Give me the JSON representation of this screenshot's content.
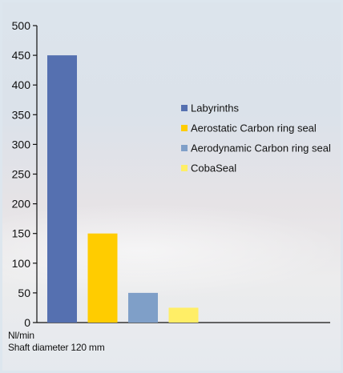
{
  "chart_data": {
    "type": "bar",
    "categories": [
      "Labyrinths",
      "Aerostatic Carbon ring seal",
      "Aerodynamic Carbon ring seal",
      "CobaSeal"
    ],
    "values": [
      450,
      150,
      50,
      25
    ],
    "colors": [
      "#5570b0",
      "#ffcc00",
      "#7f9fc8",
      "#ffee66"
    ],
    "ylim": [
      0,
      500
    ],
    "yticks": [
      "0",
      "50",
      "100",
      "150",
      "200",
      "250",
      "300",
      "350",
      "400",
      "450",
      "500"
    ],
    "ylabel": "Nl/min",
    "subtitle": "Shaft diameter 120 mm",
    "legend": {
      "position": "right",
      "entries": [
        "Labyrinths",
        "Aerostatic Carbon ring seal",
        "Aerodynamic Carbon ring seal",
        "CobaSeal"
      ]
    },
    "grid": false
  }
}
